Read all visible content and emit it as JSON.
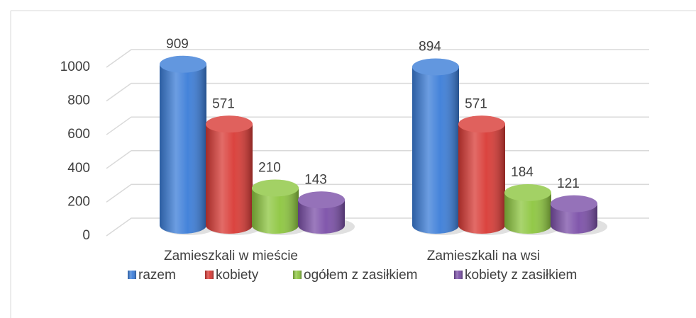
{
  "chart_data": {
    "type": "bar3d",
    "categories": [
      "Zamieszkali w mieście",
      "Zamieszkali na wsi"
    ],
    "series": [
      {
        "name": "razem",
        "color": "#3b7dd8",
        "values": [
          909,
          894
        ]
      },
      {
        "name": "kobiety",
        "color": "#d93a35",
        "values": [
          571,
          571
        ]
      },
      {
        "name": "ogółem z zasiłkiem",
        "color": "#8dc63f",
        "values": [
          210,
          184
        ]
      },
      {
        "name": "kobiety z zasiłkiem",
        "color": "#7b4fa8",
        "values": [
          143,
          121
        ]
      }
    ],
    "ylim": [
      0,
      1000
    ],
    "yticks": [
      0,
      200,
      400,
      600,
      800,
      1000
    ],
    "grid": true,
    "legend": "bottom"
  }
}
